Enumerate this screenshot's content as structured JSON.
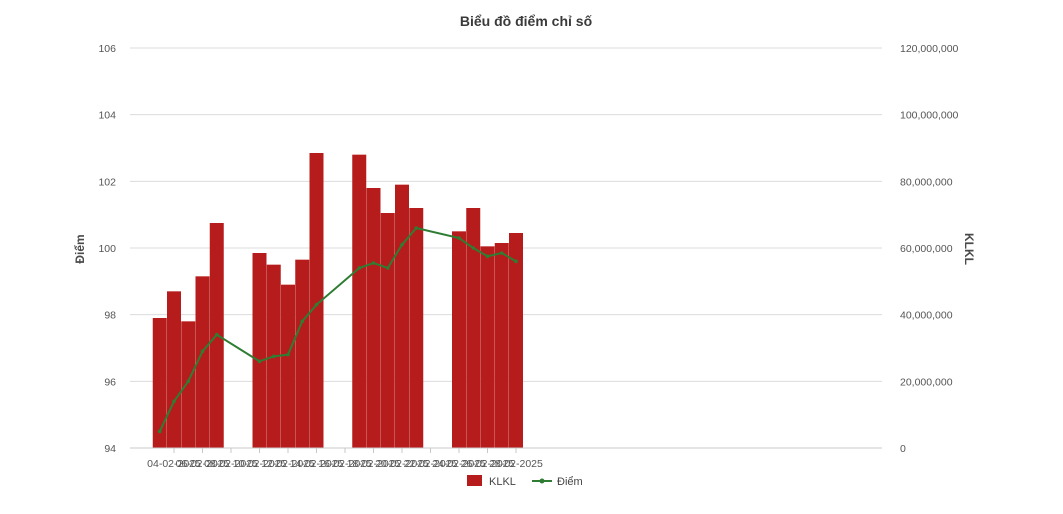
{
  "chart_data": {
    "type": "bar",
    "title": "Biểu đồ điểm chỉ số",
    "y_left_label": "Điểm",
    "y_right_label": "KLKL",
    "y_left_range": [
      94,
      106
    ],
    "y_left_ticks": [
      94,
      96,
      98,
      100,
      102,
      104,
      106
    ],
    "y_right_range": [
      0,
      120000000
    ],
    "y_right_ticks": [
      "0",
      "20,000,000",
      "40,000,000",
      "60,000,000",
      "80,000,000",
      "100,000,000",
      "120,000,000"
    ],
    "x_tick_labels": [
      "04-02-2025",
      "06-02-2025",
      "08-02-2025",
      "10-02-2025",
      "12-02-2025",
      "14-02-2025",
      "16-02-2025",
      "18-02-2025",
      "20-02-2025",
      "22-02-2025",
      "24-02-2025",
      "26-02-2025",
      "28-02-2025"
    ],
    "dates": [
      "03-02-2025",
      "04-02-2025",
      "05-02-2025",
      "06-02-2025",
      "07-02-2025",
      "10-02-2025",
      "11-02-2025",
      "12-02-2025",
      "13-02-2025",
      "14-02-2025",
      "17-02-2025",
      "18-02-2025",
      "19-02-2025",
      "20-02-2025",
      "21-02-2025",
      "24-02-2025",
      "25-02-2025",
      "26-02-2025",
      "27-02-2025",
      "28-02-2025"
    ],
    "series": [
      {
        "name": "KLKL",
        "type": "bar",
        "axis": "right",
        "color": "#b71c1c",
        "values": [
          39000000,
          47000000,
          38000000,
          51500000,
          67500000,
          58500000,
          55000000,
          49000000,
          56500000,
          88500000,
          88000000,
          78000000,
          70500000,
          79000000,
          72000000,
          65000000,
          72000000,
          60500000,
          61500000,
          64500000
        ]
      },
      {
        "name": "Điểm",
        "type": "line",
        "axis": "left",
        "color": "#2e7d32",
        "values": [
          94.5,
          95.4,
          96.0,
          96.9,
          97.4,
          96.6,
          96.75,
          96.8,
          97.8,
          98.3,
          99.4,
          99.55,
          99.4,
          100.1,
          100.6,
          100.3,
          100.0,
          99.75,
          99.85,
          99.6
        ]
      }
    ],
    "grid": true,
    "legend_position": "bottom-center"
  }
}
